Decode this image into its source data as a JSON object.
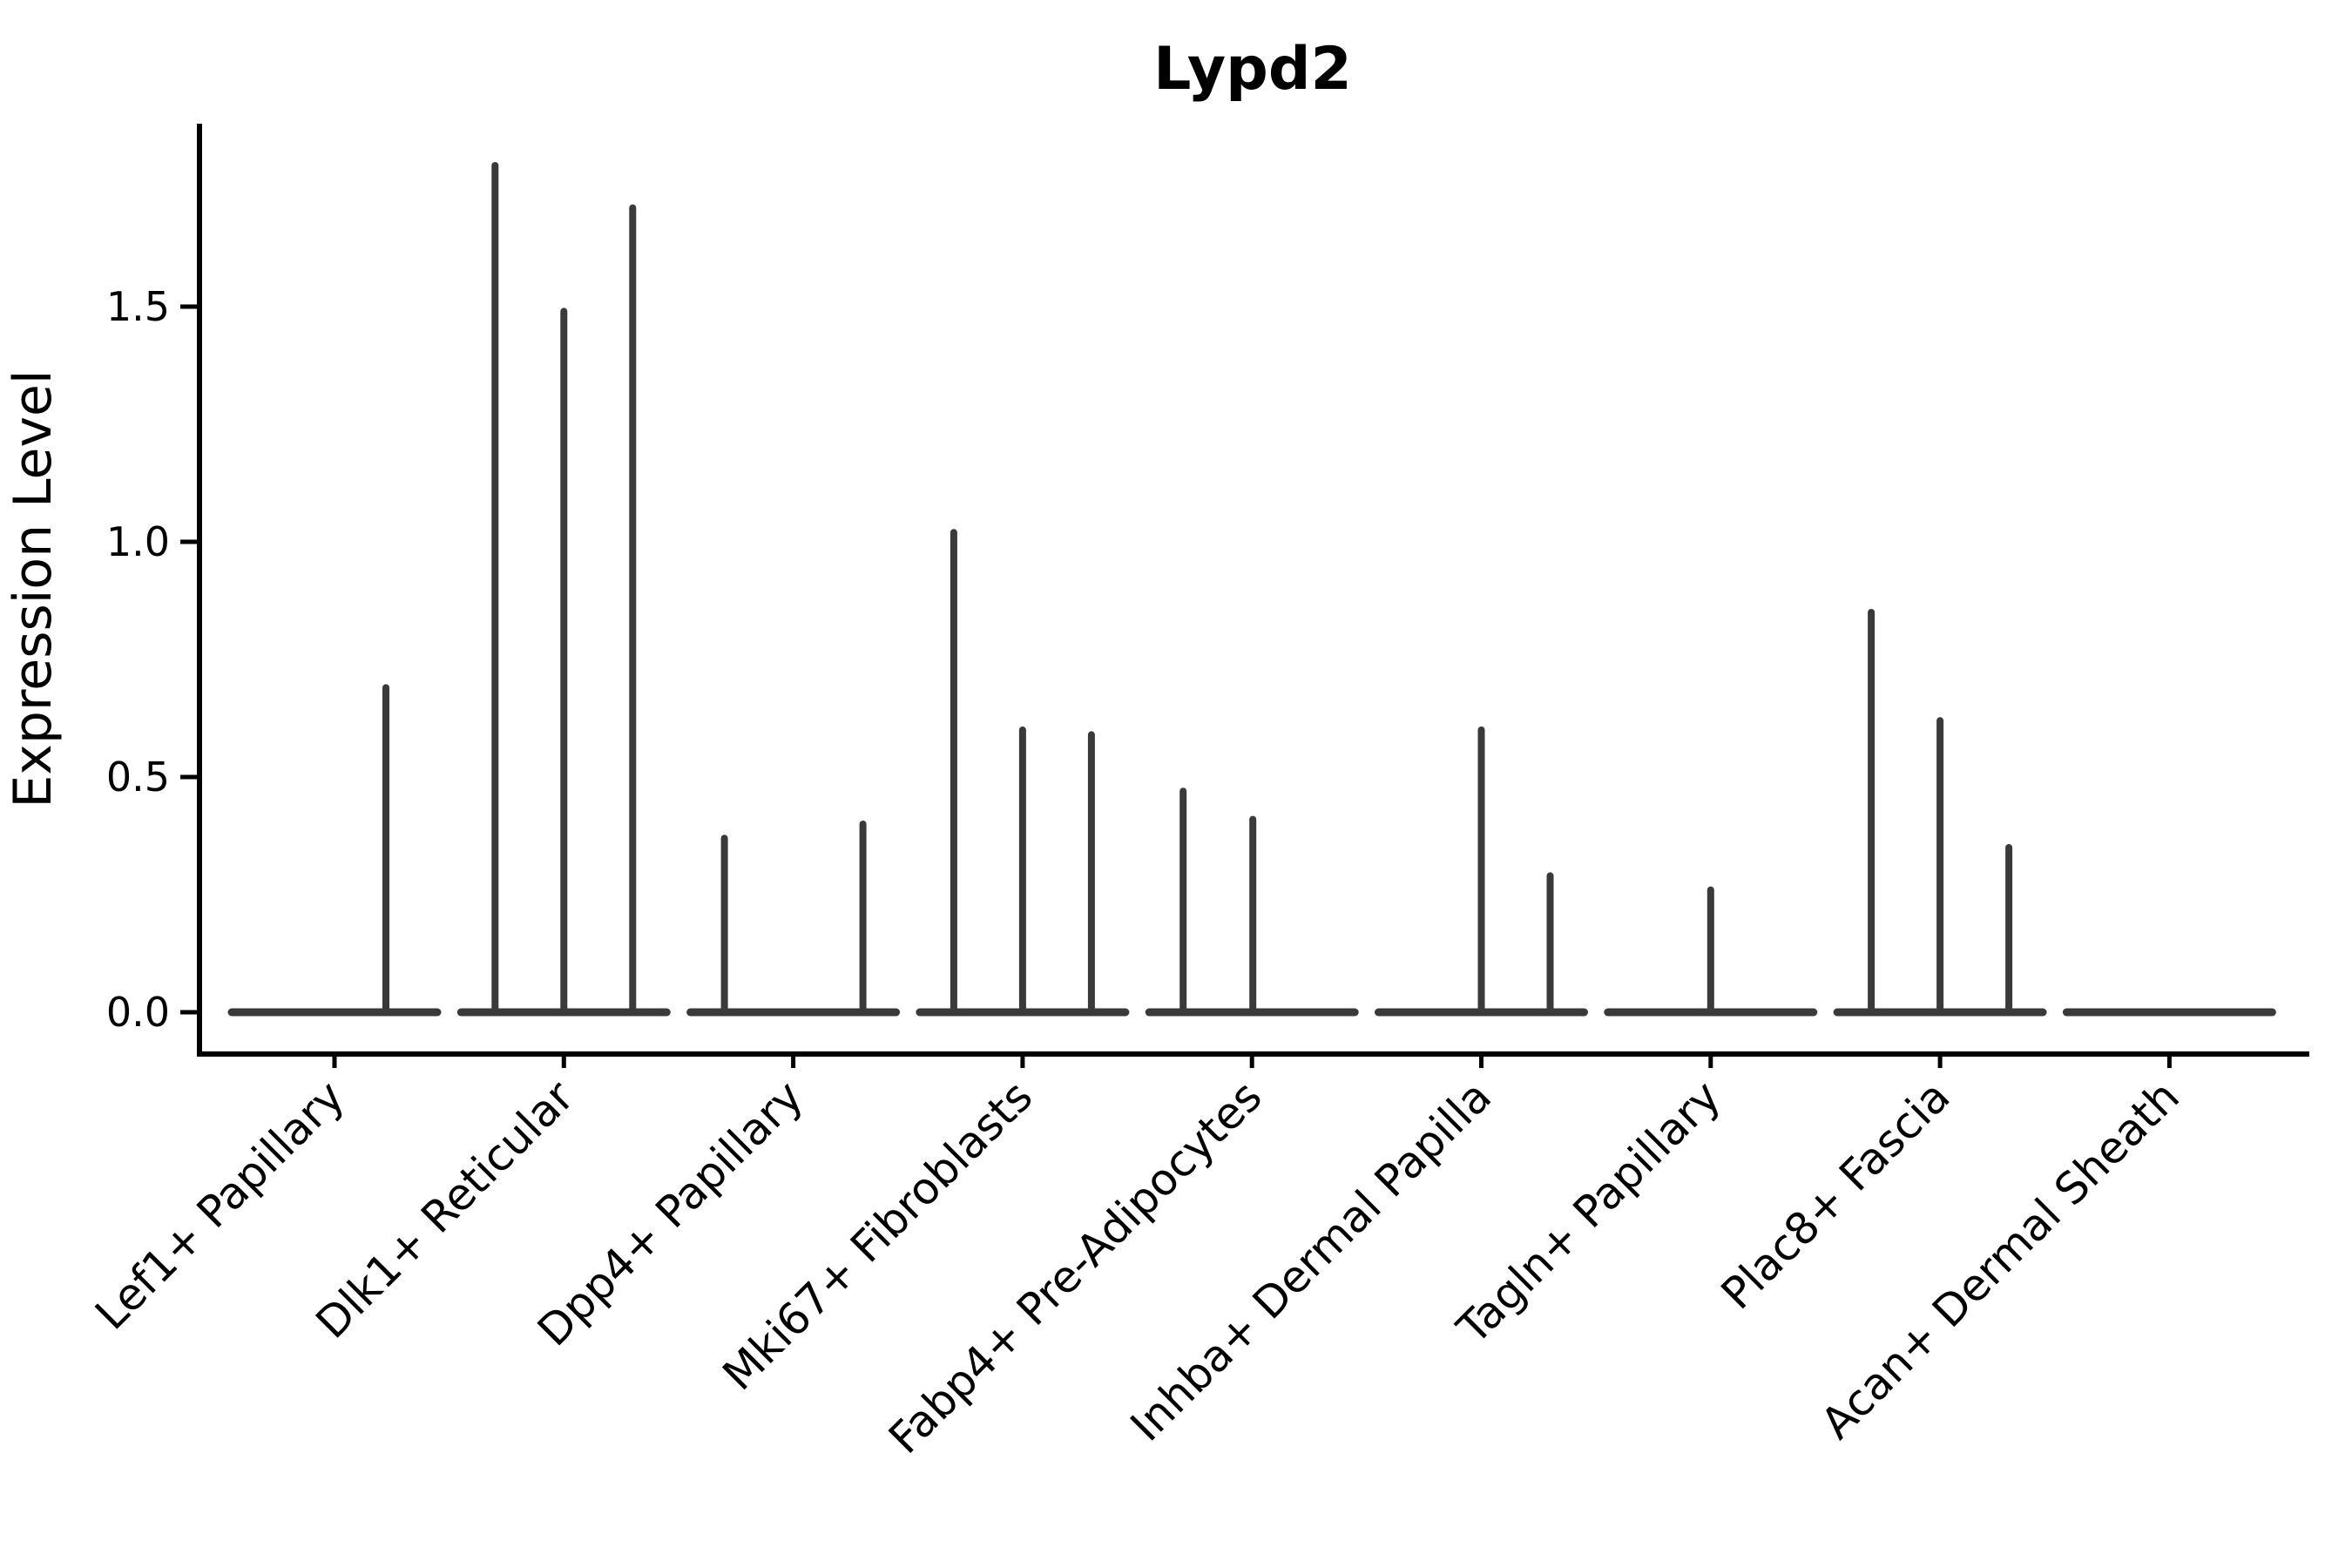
{
  "chart_data": {
    "type": "violin",
    "title": "Lypd2",
    "ylabel": "Expression Level",
    "xlabel": "",
    "background_color": "#ffffff",
    "axis_color": "#000000",
    "violin_color": "#3a3a3a",
    "grid": false,
    "legend": false,
    "ylim": [
      -0.089,
      1.889
    ],
    "y_ticks": [
      {
        "label": "0.0",
        "v": 0.0
      },
      {
        "label": "0.5",
        "v": 0.5
      },
      {
        "label": "1.0",
        "v": 1.0
      },
      {
        "label": "1.5",
        "v": 1.5
      }
    ],
    "categories": [
      {
        "label": "Lef1+ Papillary",
        "spikes": [
          {
            "dx": 59,
            "max": 0.69
          }
        ]
      },
      {
        "label": "Dlk1+ Reticular",
        "spikes": [
          {
            "dx": -79,
            "max": 1.8
          },
          {
            "dx": 0,
            "max": 1.49
          },
          {
            "dx": 79,
            "max": 1.71
          }
        ]
      },
      {
        "label": "Dpp4+ Papillary",
        "spikes": [
          {
            "dx": -79,
            "max": 0.37
          },
          {
            "dx": 80,
            "max": 0.4
          }
        ]
      },
      {
        "label": "Mki67+ Fibroblasts",
        "spikes": [
          {
            "dx": -79,
            "max": 1.02
          },
          {
            "dx": 0,
            "max": 0.6
          },
          {
            "dx": 79,
            "max": 0.59
          }
        ]
      },
      {
        "label": "Fabp4+ Pre-Adipocytes",
        "spikes": [
          {
            "dx": -79,
            "max": 0.47
          },
          {
            "dx": 1,
            "max": 0.41
          }
        ]
      },
      {
        "label": "Inhba+ Dermal Papilla",
        "spikes": [
          {
            "dx": 0,
            "max": 0.6
          },
          {
            "dx": 79,
            "max": 0.29
          }
        ]
      },
      {
        "label": "Tagln+ Papillary",
        "spikes": [
          {
            "dx": 0,
            "max": 0.26
          }
        ]
      },
      {
        "label": "Plac8+ Fascia",
        "spikes": [
          {
            "dx": -79,
            "max": 0.85
          },
          {
            "dx": 0,
            "max": 0.62
          },
          {
            "dx": 79,
            "max": 0.35
          }
        ]
      },
      {
        "label": "Acan+ Dermal Sheath",
        "spikes": []
      }
    ]
  }
}
